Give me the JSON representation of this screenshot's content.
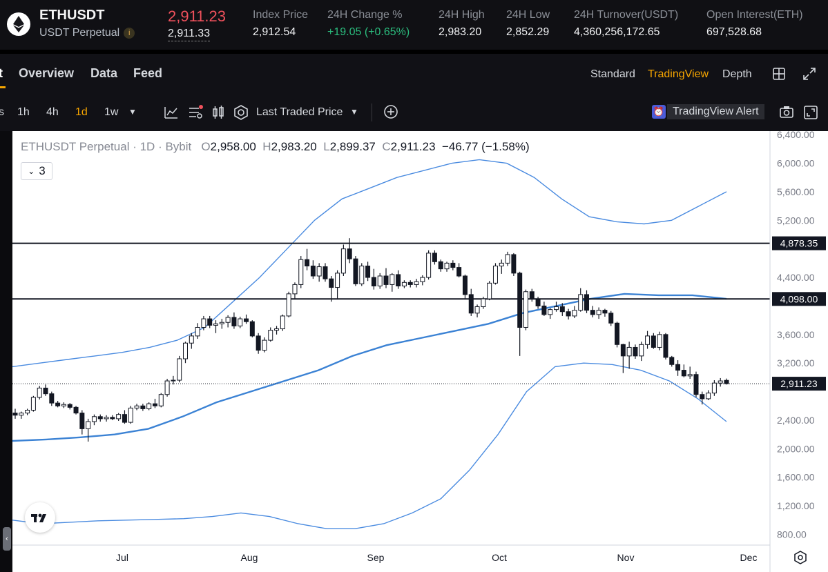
{
  "header": {
    "symbol": "ETHUSDT",
    "contract_type": "USDT Perpetual",
    "info_icon": "i",
    "last_price": "2,911.23",
    "mark_price": "2,911.33",
    "stats": [
      {
        "label": "Index Price",
        "value": "2,912.54"
      },
      {
        "label": "24H Change %",
        "value": "+19.05 (+0.65%)"
      },
      {
        "label": "24H High",
        "value": "2,983.20"
      },
      {
        "label": "24H Low",
        "value": "2,852.29"
      },
      {
        "label": "24H Turnover(USDT)",
        "value": "4,360,256,172.65"
      },
      {
        "label": "Open Interest(ETH)",
        "value": "697,528.68"
      }
    ],
    "colors": {
      "down": "#f0515c",
      "up": "#2bbd7e",
      "accent": "#f7a600"
    }
  },
  "tabs": {
    "partial": "t",
    "items": [
      "Overview",
      "Data",
      "Feed"
    ],
    "views": [
      "Standard",
      "TradingView",
      "Depth"
    ],
    "active_view": "TradingView"
  },
  "toolbar": {
    "timeframes": [
      "1h",
      "4h",
      "1d",
      "1w"
    ],
    "active_timeframe": "1d",
    "price_source": "Last Traded Price",
    "alert_label": "TradingView Alert",
    "icons": [
      "indicators-icon",
      "templates-icon",
      "candles-icon",
      "settings-icon",
      "add-icon",
      "camera-icon",
      "fullscreen-icon"
    ]
  },
  "chart_data": {
    "type": "candlestick",
    "legend": {
      "title": "ETHUSDT Perpetual",
      "interval": "1D",
      "exchange": "Bybit",
      "open_label": "O",
      "open": "2,958.00",
      "high_label": "H",
      "high": "2,983.20",
      "low_label": "L",
      "low": "2,899.37",
      "close_label": "C",
      "close": "2,911.23",
      "change": "−46.77 (−1.58%)"
    },
    "collapse_count": "3",
    "y_ticks": [
      "6,400.00",
      "6,000.00",
      "5,600.00",
      "5,200.00",
      "4,400.00",
      "3,600.00",
      "3,200.00",
      "2,400.00",
      "2,000.00",
      "1,600.00",
      "1,200.00",
      "800.00"
    ],
    "x_ticks": [
      "Jul",
      "Aug",
      "Sep",
      "Oct",
      "Nov",
      "Dec"
    ],
    "ylim": [
      650,
      6450
    ],
    "horizontal_lines": [
      {
        "value": 4878.35,
        "label": "4,878.35"
      },
      {
        "value": 4098.0,
        "label": "4,098.00"
      }
    ],
    "last_price_line": {
      "value": 2911.23,
      "label": "2,911.23"
    },
    "candles": [
      [
        2500,
        2560,
        2420,
        2470
      ],
      [
        2470,
        2520,
        2420,
        2500
      ],
      [
        2500,
        2560,
        2470,
        2540
      ],
      [
        2540,
        2740,
        2520,
        2720
      ],
      [
        2720,
        2880,
        2690,
        2850
      ],
      [
        2850,
        2900,
        2740,
        2770
      ],
      [
        2770,
        2800,
        2600,
        2640
      ],
      [
        2640,
        2670,
        2580,
        2600
      ],
      [
        2600,
        2650,
        2570,
        2620
      ],
      [
        2620,
        2640,
        2550,
        2580
      ],
      [
        2580,
        2600,
        2480,
        2500
      ],
      [
        2500,
        2540,
        2200,
        2280
      ],
      [
        2280,
        2420,
        2100,
        2380
      ],
      [
        2380,
        2480,
        2330,
        2450
      ],
      [
        2450,
        2480,
        2380,
        2420
      ],
      [
        2420,
        2470,
        2380,
        2440
      ],
      [
        2440,
        2470,
        2400,
        2420
      ],
      [
        2420,
        2500,
        2390,
        2480
      ],
      [
        2480,
        2540,
        2350,
        2370
      ],
      [
        2370,
        2600,
        2350,
        2570
      ],
      [
        2570,
        2630,
        2540,
        2600
      ],
      [
        2600,
        2630,
        2530,
        2560
      ],
      [
        2560,
        2650,
        2540,
        2630
      ],
      [
        2630,
        2700,
        2570,
        2600
      ],
      [
        2600,
        2780,
        2580,
        2760
      ],
      [
        2760,
        2980,
        2730,
        2950
      ],
      [
        2950,
        3020,
        2900,
        2960
      ],
      [
        2960,
        3300,
        2930,
        3260
      ],
      [
        3260,
        3500,
        3200,
        3480
      ],
      [
        3480,
        3620,
        3400,
        3580
      ],
      [
        3580,
        3760,
        3540,
        3700
      ],
      [
        3700,
        3860,
        3660,
        3820
      ],
      [
        3820,
        3860,
        3690,
        3730
      ],
      [
        3730,
        3800,
        3620,
        3750
      ],
      [
        3750,
        3820,
        3680,
        3770
      ],
      [
        3770,
        3870,
        3700,
        3840
      ],
      [
        3840,
        3910,
        3680,
        3720
      ],
      [
        3720,
        3850,
        3690,
        3820
      ],
      [
        3820,
        3880,
        3750,
        3780
      ],
      [
        3780,
        3800,
        3560,
        3580
      ],
      [
        3580,
        3620,
        3330,
        3380
      ],
      [
        3380,
        3560,
        3350,
        3520
      ],
      [
        3520,
        3700,
        3500,
        3660
      ],
      [
        3660,
        3720,
        3600,
        3680
      ],
      [
        3680,
        3880,
        3650,
        3860
      ],
      [
        3860,
        4200,
        3840,
        4170
      ],
      [
        4170,
        4330,
        4100,
        4300
      ],
      [
        4300,
        4700,
        4250,
        4650
      ],
      [
        4650,
        4800,
        4500,
        4560
      ],
      [
        4560,
        4640,
        4380,
        4420
      ],
      [
        4420,
        4600,
        4340,
        4550
      ],
      [
        4550,
        4600,
        4340,
        4380
      ],
      [
        4380,
        4420,
        4060,
        4260
      ],
      [
        4260,
        4500,
        4100,
        4460
      ],
      [
        4460,
        4860,
        4420,
        4800
      ],
      [
        4800,
        4950,
        4600,
        4660
      ],
      [
        4660,
        4700,
        4280,
        4310
      ],
      [
        4310,
        4600,
        4280,
        4560
      ],
      [
        4560,
        4620,
        4350,
        4400
      ],
      [
        4400,
        4520,
        4230,
        4280
      ],
      [
        4280,
        4460,
        4240,
        4420
      ],
      [
        4420,
        4530,
        4250,
        4300
      ],
      [
        4300,
        4460,
        4200,
        4440
      ],
      [
        4440,
        4500,
        4240,
        4280
      ],
      [
        4280,
        4360,
        4250,
        4330
      ],
      [
        4330,
        4360,
        4260,
        4300
      ],
      [
        4300,
        4380,
        4260,
        4340
      ],
      [
        4340,
        4430,
        4290,
        4400
      ],
      [
        4400,
        4780,
        4370,
        4740
      ],
      [
        4740,
        4780,
        4580,
        4620
      ],
      [
        4620,
        4650,
        4480,
        4520
      ],
      [
        4520,
        4620,
        4480,
        4600
      ],
      [
        4600,
        4640,
        4500,
        4540
      ],
      [
        4540,
        4600,
        4400,
        4420
      ],
      [
        4420,
        4440,
        4100,
        4160
      ],
      [
        4160,
        4240,
        3860,
        3900
      ],
      [
        3900,
        4020,
        3840,
        3990
      ],
      [
        3990,
        4130,
        3960,
        4100
      ],
      [
        4100,
        4350,
        4080,
        4320
      ],
      [
        4320,
        4600,
        4300,
        4560
      ],
      [
        4560,
        4650,
        4450,
        4600
      ],
      [
        4600,
        4760,
        4560,
        4720
      ],
      [
        4720,
        4740,
        4420,
        4460
      ],
      [
        4460,
        4480,
        3300,
        3700
      ],
      [
        3700,
        4230,
        3660,
        4200
      ],
      [
        4200,
        4240,
        4060,
        4100
      ],
      [
        4100,
        4130,
        3960,
        4000
      ],
      [
        4000,
        4060,
        3860,
        3880
      ],
      [
        3880,
        3970,
        3820,
        3950
      ],
      [
        3950,
        4060,
        3920,
        3990
      ],
      [
        3990,
        4040,
        3860,
        3920
      ],
      [
        3920,
        3960,
        3810,
        3860
      ],
      [
        3860,
        4000,
        3830,
        3940
      ],
      [
        3940,
        4250,
        3920,
        4160
      ],
      [
        4160,
        4220,
        3900,
        3940
      ],
      [
        3940,
        4000,
        3840,
        3880
      ],
      [
        3880,
        3980,
        3820,
        3940
      ],
      [
        3940,
        3960,
        3850,
        3900
      ],
      [
        3900,
        3930,
        3720,
        3760
      ],
      [
        3760,
        3780,
        3420,
        3460
      ],
      [
        3460,
        3470,
        3060,
        3300
      ],
      [
        3300,
        3500,
        3120,
        3420
      ],
      [
        3420,
        3460,
        3260,
        3300
      ],
      [
        3300,
        3500,
        3230,
        3460
      ],
      [
        3460,
        3650,
        3400,
        3580
      ],
      [
        3580,
        3620,
        3400,
        3420
      ],
      [
        3420,
        3640,
        3380,
        3600
      ],
      [
        3600,
        3620,
        3250,
        3280
      ],
      [
        3280,
        3300,
        3150,
        3180
      ],
      [
        3180,
        3240,
        3020,
        3100
      ],
      [
        3100,
        3180,
        3000,
        3020
      ],
      [
        3020,
        3150,
        2980,
        3040
      ],
      [
        3040,
        3080,
        2720,
        2760
      ],
      [
        2760,
        2800,
        2620,
        2700
      ],
      [
        2700,
        2820,
        2680,
        2780
      ],
      [
        2780,
        2960,
        2740,
        2920
      ],
      [
        2920,
        2990,
        2870,
        2950
      ],
      [
        2958,
        2983.2,
        2899.37,
        2911.23
      ]
    ],
    "bollinger_bands": [
      {
        "name": "upper",
        "values": [
          3150,
          3200,
          3250,
          3300,
          3350,
          3420,
          3520,
          3700,
          4050,
          4400,
          4800,
          5200,
          5500,
          5650,
          5800,
          5900,
          6000,
          6050,
          6000,
          5800,
          5500,
          5250,
          5180,
          5150,
          5200,
          5400,
          5600
        ]
      },
      {
        "name": "basis",
        "values": [
          2110,
          2130,
          2160,
          2200,
          2280,
          2450,
          2650,
          2800,
          2950,
          3100,
          3300,
          3450,
          3550,
          3650,
          3750,
          3900,
          4000,
          4100,
          4170,
          4150,
          4150,
          4100
        ]
      },
      {
        "name": "lower",
        "values": [
          1000,
          950,
          970,
          990,
          1000,
          1010,
          1020,
          1050,
          1100,
          1050,
          950,
          880,
          880,
          950,
          1100,
          1300,
          1700,
          2200,
          2800,
          3150,
          3200,
          3180,
          3100,
          2950,
          2700,
          2380
        ]
      }
    ]
  }
}
